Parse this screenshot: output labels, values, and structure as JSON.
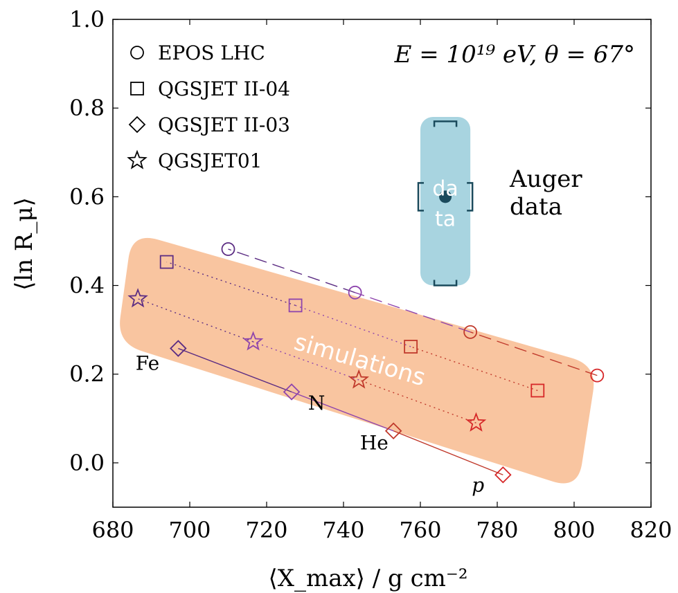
{
  "chart_data": {
    "type": "scatter",
    "xlabel": "⟨X_max⟩ / g cm⁻²",
    "ylabel": "⟨ln R_μ⟩",
    "xlim": [
      680,
      820
    ],
    "ylim": [
      -0.1,
      1.0
    ],
    "x_ticks": [
      "680",
      "700",
      "720",
      "740",
      "760",
      "780",
      "800",
      "820"
    ],
    "y_ticks": [
      "0.0",
      "0.2",
      "0.4",
      "0.6",
      "0.8",
      "1.0"
    ],
    "annotation": "E = 10¹⁹ eV, θ = 67°",
    "components": [
      "p",
      "He",
      "N",
      "Fe"
    ],
    "component_colors": [
      "#d62728",
      "#c0392b",
      "#8e44ad",
      "#5b2c83"
    ],
    "series": [
      {
        "name": "EPOS LHC",
        "marker": "circle",
        "dash": "long",
        "x": [
          806,
          773,
          743,
          710
        ],
        "y": [
          0.197,
          0.295,
          0.384,
          0.482
        ]
      },
      {
        "name": "QGSJET II-04",
        "marker": "square",
        "dash": "dotted",
        "x": [
          790.5,
          757.5,
          727.5,
          694
        ],
        "y": [
          0.163,
          0.262,
          0.355,
          0.453
        ]
      },
      {
        "name": "QGSJET II-03",
        "marker": "diamond",
        "dash": "solid",
        "x": [
          781.5,
          753,
          726.5,
          697
        ],
        "y": [
          -0.027,
          0.072,
          0.16,
          0.258
        ]
      },
      {
        "name": "QGSJET01",
        "marker": "star",
        "dash": "dotted",
        "x": [
          774.5,
          744,
          716.5,
          686.5
        ],
        "y": [
          0.09,
          0.187,
          0.273,
          0.37
        ]
      }
    ],
    "component_labels": [
      {
        "text": "Fe",
        "x": 689,
        "y": 0.21
      },
      {
        "text": "N",
        "x": 733,
        "y": 0.12
      },
      {
        "text": "He",
        "x": 748,
        "y": 0.03
      },
      {
        "text": "p",
        "x": 775,
        "y": -0.065
      }
    ],
    "simulations_band": {
      "label": "simulations",
      "color": "#f9c5a0",
      "corners": [
        [
          685,
          0.52
        ],
        [
          806,
          0.22
        ],
        [
          801,
          -0.06
        ],
        [
          681,
          0.27
        ]
      ]
    },
    "auger_data": {
      "label": "Auger data",
      "box_label": "data",
      "x": 766.5,
      "y": 0.6,
      "stat_x_err": [
        763.5,
        769.5
      ],
      "sys_x": [
        760,
        773
      ],
      "sys_y": [
        0.4,
        0.77
      ],
      "box": {
        "x0": 760,
        "x1": 773,
        "y0": 0.4,
        "y1": 0.78
      },
      "box_color": "#a8d4e0",
      "point_color": "#1a4a5c"
    },
    "legend_position": "top-left"
  },
  "legend": [
    {
      "label": "EPOS LHC",
      "marker": "circle"
    },
    {
      "label": "QGSJET II-04",
      "marker": "square"
    },
    {
      "label": "QGSJET II-03",
      "marker": "diamond"
    },
    {
      "label": "QGSJET01",
      "marker": "star"
    }
  ]
}
